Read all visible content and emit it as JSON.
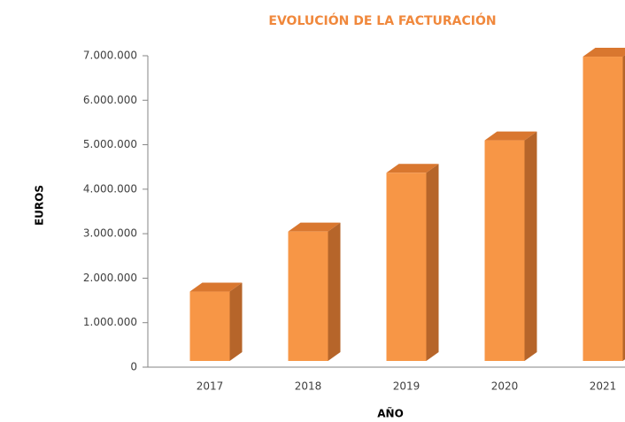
{
  "chart_data": {
    "type": "bar3d",
    "title": "EVOLUCIÓN DE LA FACTURACIÓN",
    "x_label": "AÑO",
    "y_label": "EUROS",
    "categories": [
      "2017",
      "2018",
      "2019",
      "2020",
      "2021"
    ],
    "values": [
      1600000,
      2950000,
      4270000,
      5000000,
      6880000
    ],
    "color": "#f79646",
    "ylim": [
      0,
      7000000
    ],
    "yticks": [
      0,
      {
        "value": 1000000,
        "label": "1.000.000"
      },
      {
        "value": 2000000,
        "label": "2.000.000"
      },
      {
        "value": 3000000,
        "label": "3.000.000"
      },
      {
        "value": 4000000,
        "label": "4.000.000"
      },
      {
        "value": 5000000,
        "label": "5.000.000"
      },
      {
        "value": 6000000,
        "label": "6.000.000"
      },
      {
        "value": 7000000,
        "label": "7.000.000"
      }
    ]
  }
}
